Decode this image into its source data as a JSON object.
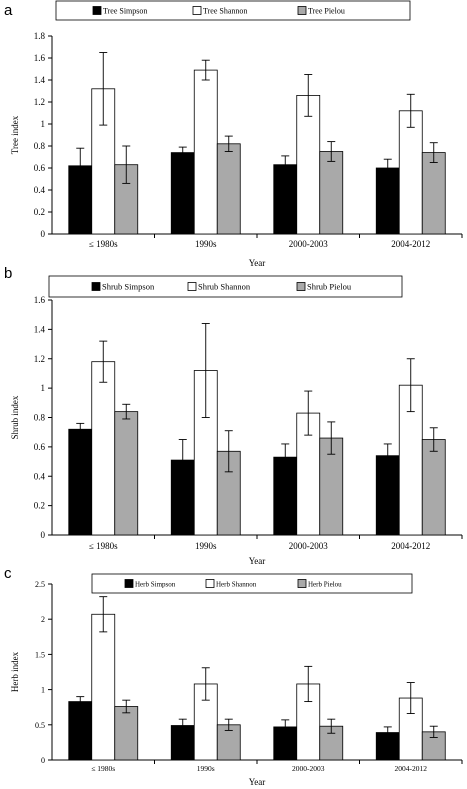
{
  "chart_data": [
    {
      "type": "bar",
      "panel_label": "a",
      "categories": [
        "≤ 1980s",
        "1990s",
        "2000-2003",
        "2004-2012"
      ],
      "series": [
        {
          "name": "Tree Simpson",
          "values": [
            0.62,
            0.74,
            0.63,
            0.6
          ],
          "errors": [
            0.16,
            0.05,
            0.08,
            0.08
          ],
          "color": "#000000"
        },
        {
          "name": "Tree Shannon",
          "values": [
            1.32,
            1.49,
            1.26,
            1.12
          ],
          "errors": [
            0.33,
            0.09,
            0.19,
            0.15
          ],
          "color": "#ffffff"
        },
        {
          "name": "Tree Pielou",
          "values": [
            0.63,
            0.82,
            0.75,
            0.74
          ],
          "errors": [
            0.17,
            0.07,
            0.09,
            0.09
          ],
          "color": "#a9a9a9"
        }
      ],
      "xlabel": "Year",
      "ylabel": "Tree index",
      "ylim": [
        0,
        1.8
      ],
      "yticks": [
        "0",
        "0.2",
        "0.4",
        "0.6",
        "0.8",
        "1",
        "1.2",
        "1.4",
        "1.6",
        "1.8"
      ],
      "grid": false,
      "legend_placement": "top"
    },
    {
      "type": "bar",
      "panel_label": "b",
      "categories": [
        "≤ 1980s",
        "1990s",
        "2000-2003",
        "2004-2012"
      ],
      "series": [
        {
          "name": "Shrub Simpson",
          "values": [
            0.72,
            0.51,
            0.53,
            0.54
          ],
          "errors": [
            0.04,
            0.14,
            0.09,
            0.08
          ],
          "color": "#000000"
        },
        {
          "name": "Shrub Shannon",
          "values": [
            1.18,
            1.12,
            0.83,
            1.02
          ],
          "errors": [
            0.14,
            0.32,
            0.15,
            0.18
          ],
          "color": "#ffffff"
        },
        {
          "name": "Shrub Pielou",
          "values": [
            0.84,
            0.57,
            0.66,
            0.65
          ],
          "errors": [
            0.05,
            0.14,
            0.11,
            0.08
          ],
          "color": "#a9a9a9"
        }
      ],
      "xlabel": "Year",
      "ylabel": "Shrub index",
      "ylim": [
        0,
        1.6
      ],
      "yticks": [
        "0",
        "0.2",
        "0.4",
        "0.6",
        "0.8",
        "1",
        "1.2",
        "1.4",
        "1.6"
      ],
      "grid": false,
      "legend_placement": "top"
    },
    {
      "type": "bar",
      "panel_label": "c",
      "categories": [
        "≤ 1980s",
        "1990s",
        "2000-2003",
        "2004-2012"
      ],
      "series": [
        {
          "name": "Herb Simpson",
          "values": [
            0.83,
            0.49,
            0.47,
            0.39
          ],
          "errors": [
            0.07,
            0.09,
            0.1,
            0.08
          ],
          "color": "#000000"
        },
        {
          "name": "Herb Shannon",
          "values": [
            2.07,
            1.08,
            1.08,
            0.88
          ],
          "errors": [
            0.25,
            0.23,
            0.25,
            0.22
          ],
          "color": "#ffffff"
        },
        {
          "name": "Herb Pielou",
          "values": [
            0.76,
            0.5,
            0.48,
            0.4
          ],
          "errors": [
            0.09,
            0.08,
            0.1,
            0.08
          ],
          "color": "#a9a9a9"
        }
      ],
      "xlabel": "Year",
      "ylabel": "Herb index",
      "ylim": [
        0,
        2.5
      ],
      "yticks": [
        "0",
        "0.5",
        "1",
        "1.5",
        "2",
        "2.5"
      ],
      "grid": false,
      "legend_placement": "top"
    }
  ]
}
